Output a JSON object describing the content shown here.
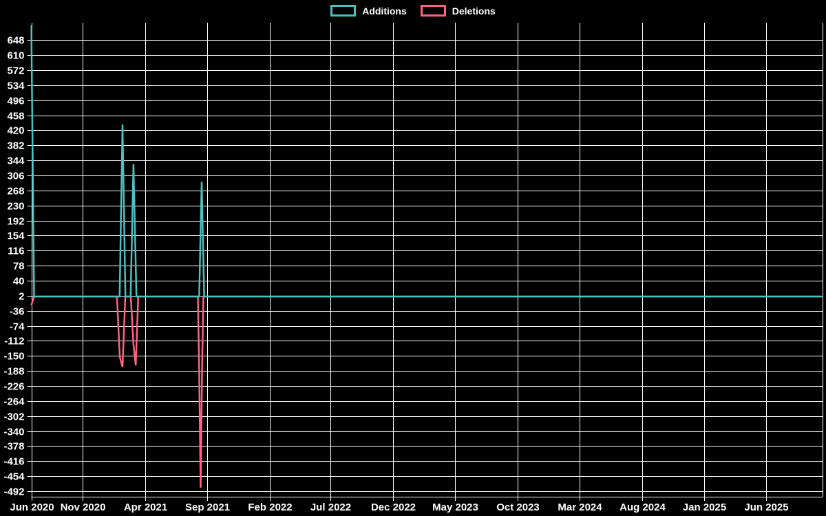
{
  "legend": {
    "items": [
      {
        "label": "Additions",
        "color": "#4bc0c0"
      },
      {
        "label": "Deletions",
        "color": "#ff6384"
      }
    ]
  },
  "chart_data": {
    "type": "line",
    "title": "",
    "xlabel": "",
    "ylabel": "",
    "background": "#000000",
    "grid": true,
    "grid_color": "#ffffff",
    "text_color": "#ffffff",
    "legend_position": "top-center",
    "x_axis": {
      "ticks": [
        {
          "label": "Jun 2020",
          "pos": 0.0
        },
        {
          "label": "Nov 2020",
          "pos": 0.0651
        },
        {
          "label": "Apr 2021",
          "pos": 0.144
        },
        {
          "label": "Sep 2021",
          "pos": 0.2223
        },
        {
          "label": "Feb 2022",
          "pos": 0.3014
        },
        {
          "label": "Jul 2022",
          "pos": 0.3789
        },
        {
          "label": "Dec 2022",
          "pos": 0.458
        },
        {
          "label": "May 2023",
          "pos": 0.536
        },
        {
          "label": "Oct 2023",
          "pos": 0.6152
        },
        {
          "label": "Mar 2024",
          "pos": 0.6937
        },
        {
          "label": "Aug 2024",
          "pos": 0.7728
        },
        {
          "label": "Jan 2025",
          "pos": 0.8519
        },
        {
          "label": "Jun 2025",
          "pos": 0.93
        }
      ]
    },
    "y_axis": {
      "ticks": [
        648,
        610,
        572,
        534,
        496,
        458,
        420,
        382,
        344,
        306,
        268,
        230,
        192,
        154,
        116,
        78,
        40,
        2,
        -36,
        -74,
        -112,
        -150,
        -188,
        -226,
        -264,
        -302,
        -340,
        -378,
        -416,
        -454,
        -492
      ],
      "lim": [
        -506,
        692
      ]
    },
    "series": [
      {
        "name": "Additions",
        "color": "#4bc0c0",
        "points": [
          [
            0.0,
            686
          ],
          [
            0.0035,
            0
          ],
          [
            0.1118,
            0
          ],
          [
            0.1154,
            435
          ],
          [
            0.1191,
            0
          ],
          [
            0.1257,
            0
          ],
          [
            0.1293,
            335
          ],
          [
            0.133,
            0
          ],
          [
            0.2125,
            0
          ],
          [
            0.2156,
            290
          ],
          [
            0.2187,
            0
          ],
          [
            1.0,
            0
          ]
        ]
      },
      {
        "name": "Deletions",
        "color": "#ff6384",
        "points": [
          [
            0.0,
            -22
          ],
          [
            0.0035,
            0
          ],
          [
            0.1084,
            0
          ],
          [
            0.1119,
            -152
          ],
          [
            0.1154,
            -178
          ],
          [
            0.1189,
            0
          ],
          [
            0.1259,
            0
          ],
          [
            0.1292,
            -120
          ],
          [
            0.1321,
            -174
          ],
          [
            0.1353,
            0
          ],
          [
            0.2108,
            0
          ],
          [
            0.2125,
            -193
          ],
          [
            0.2143,
            -483
          ],
          [
            0.216,
            -190
          ],
          [
            0.2178,
            0
          ],
          [
            1.0,
            0
          ]
        ]
      }
    ],
    "notable_points": [
      {
        "approx_date": "Jun 2020",
        "additions": 686,
        "deletions": -22
      },
      {
        "approx_date": "Mar 2021",
        "additions": 435,
        "deletions": -178
      },
      {
        "approx_date": "Apr 2021",
        "additions": 335,
        "deletions": -174
      },
      {
        "approx_date": "Aug 2021",
        "additions": 290,
        "deletions": -483
      }
    ]
  }
}
